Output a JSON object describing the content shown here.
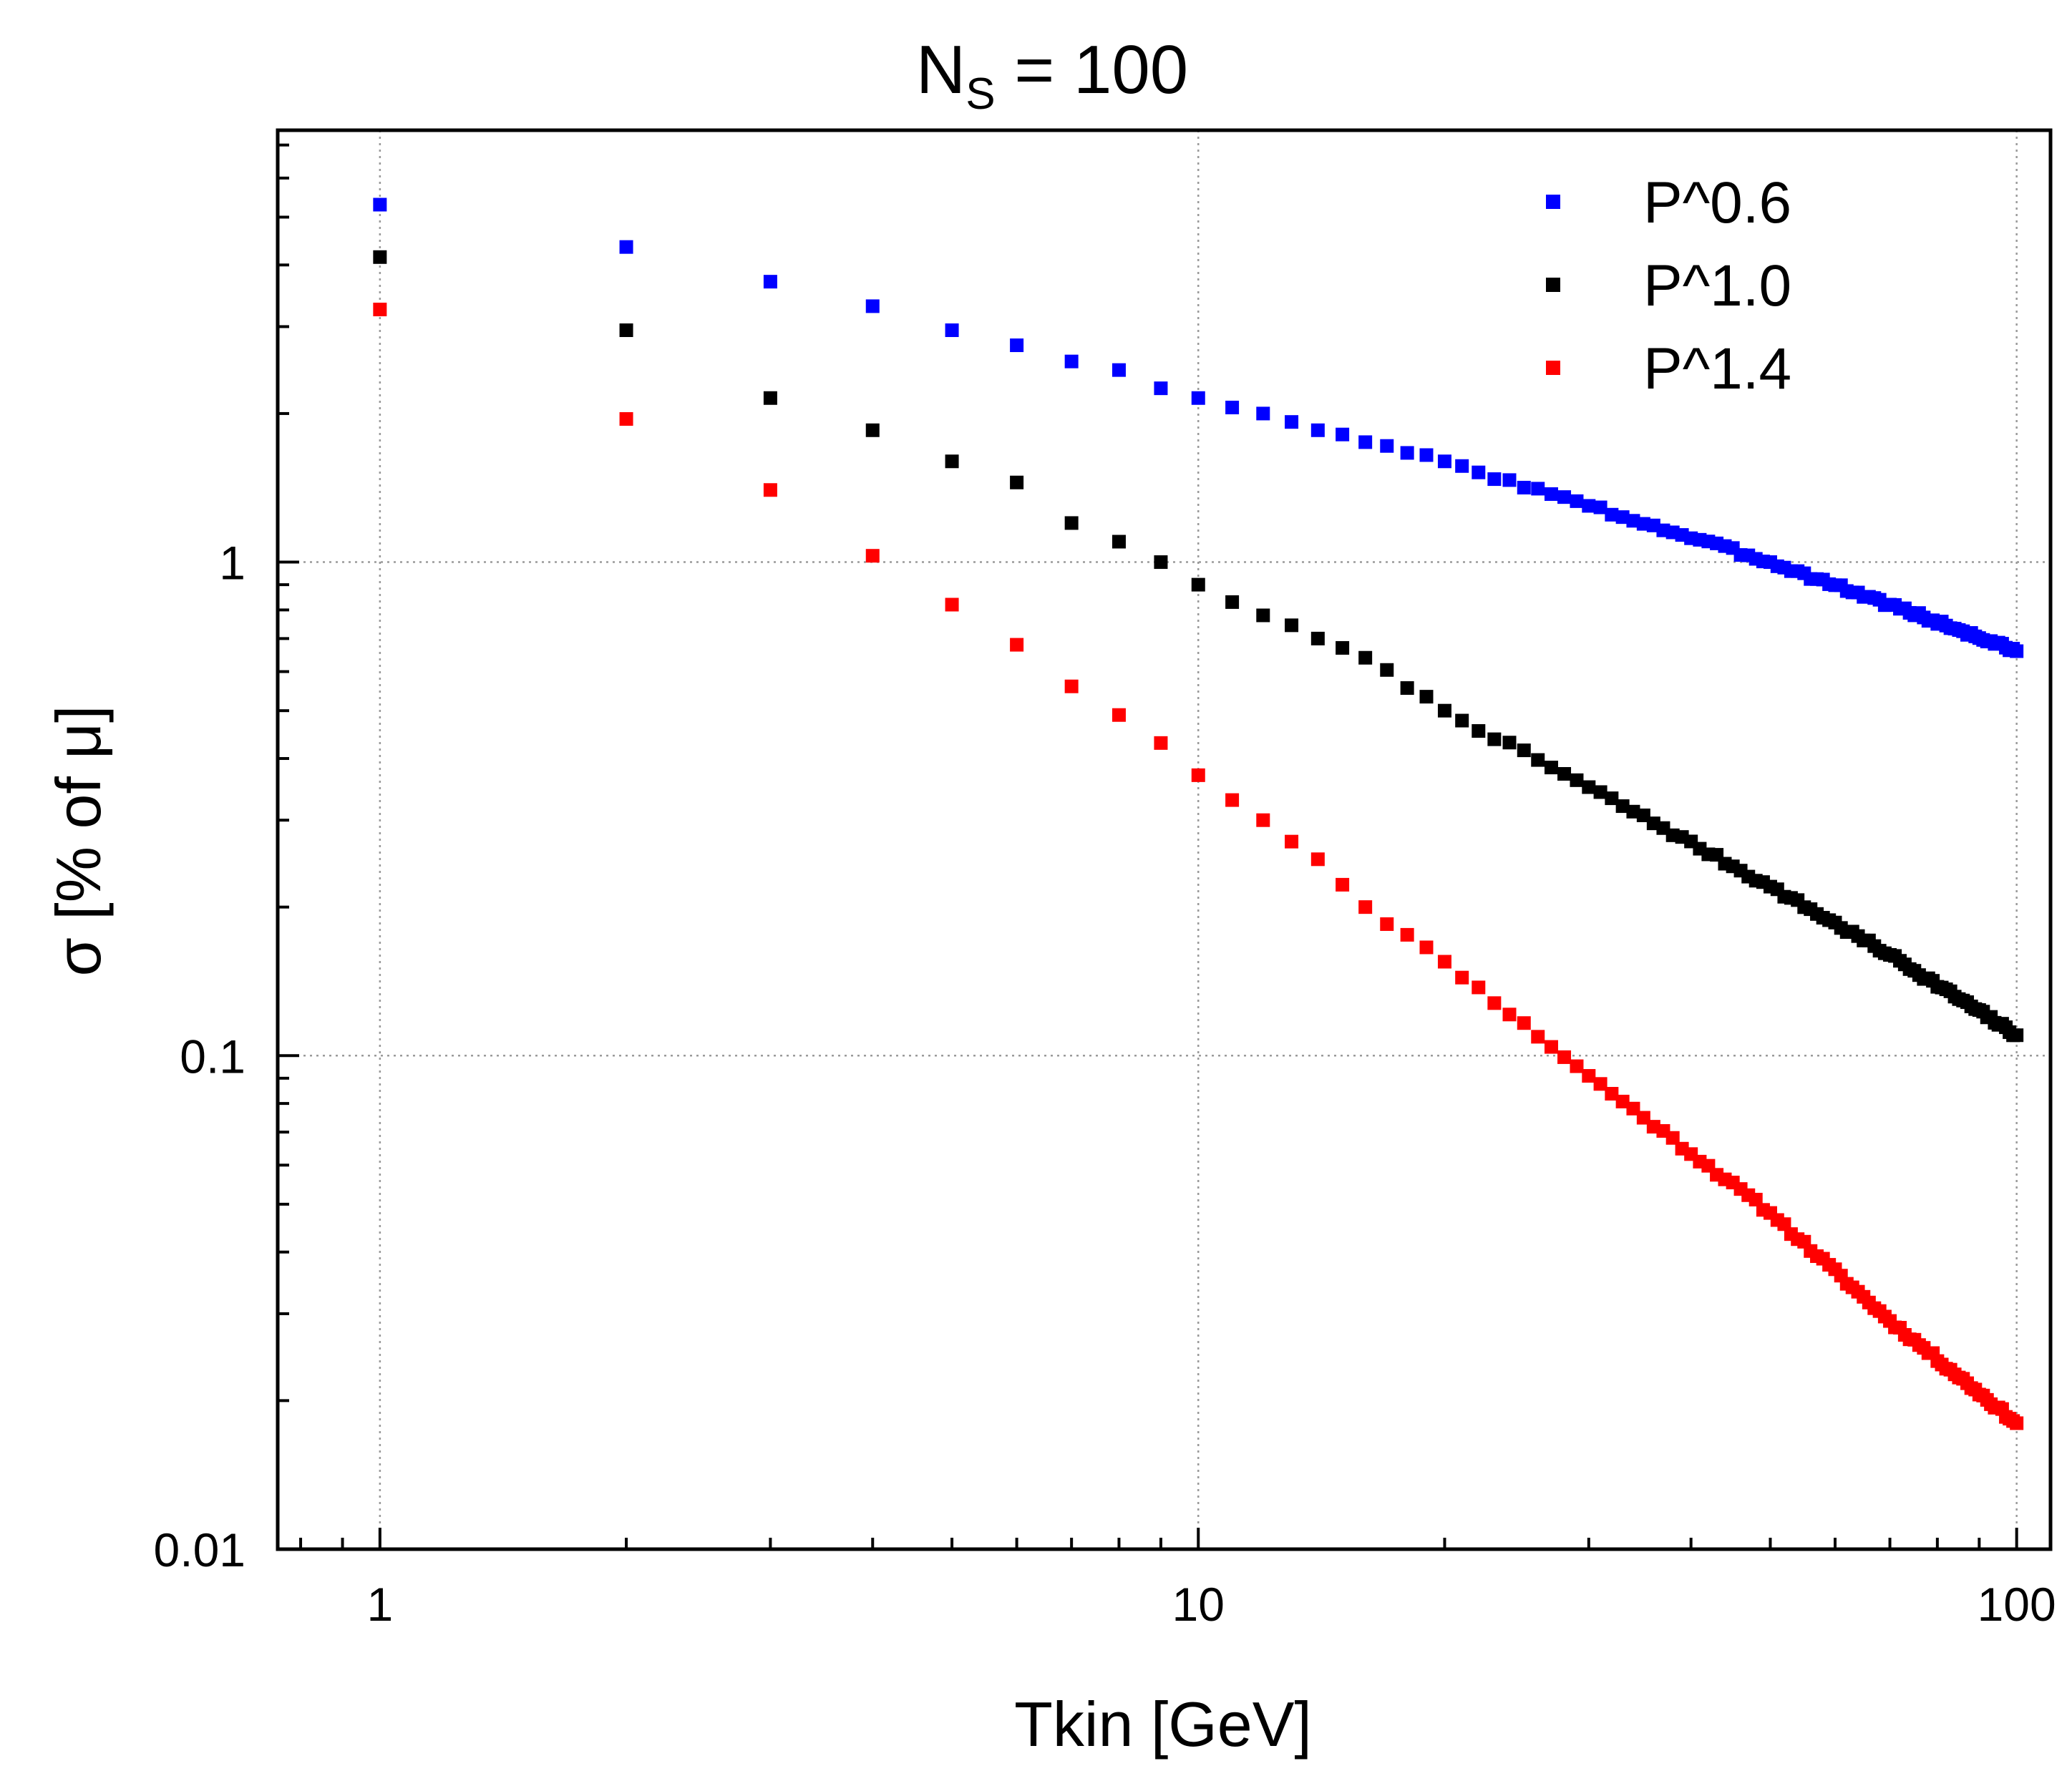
{
  "chart_data": {
    "type": "scatter",
    "title": {
      "main": "N",
      "subscript": "S",
      "rest": " = 100"
    },
    "xlabel": "Tkin [GeV]",
    "ylabel": "σ [% of μ]",
    "xscale": "log",
    "yscale": "log",
    "xlim": [
      0.75,
      110
    ],
    "ylim": [
      0.01,
      7.5
    ],
    "grid": true,
    "legend_position": "top-right",
    "xticks": [
      {
        "value": 1,
        "label": "1"
      },
      {
        "value": 10,
        "label": "10"
      },
      {
        "value": 100,
        "label": "100"
      }
    ],
    "yticks": [
      {
        "value": 0.01,
        "label": "0.01"
      },
      {
        "value": 0.1,
        "label": "0.1"
      },
      {
        "value": 1,
        "label": "1"
      }
    ],
    "series": [
      {
        "name": "P^0.6",
        "color": "#0000ff",
        "exponent": 0.6,
        "anchors": [
          [
            1,
            5.3
          ],
          [
            2,
            4.35
          ],
          [
            3,
            3.7
          ],
          [
            4,
            3.3
          ],
          [
            5,
            2.95
          ],
          [
            6,
            2.75
          ],
          [
            7,
            2.55
          ],
          [
            8,
            2.45
          ],
          [
            9,
            2.25
          ],
          [
            10,
            2.15
          ],
          [
            12,
            2.0
          ],
          [
            14,
            1.85
          ],
          [
            16,
            1.75
          ],
          [
            20,
            1.6
          ],
          [
            30,
            1.3
          ],
          [
            50,
            1.0
          ],
          [
            70,
            0.82
          ],
          [
            100,
            0.66
          ]
        ],
        "noise": 0.012,
        "seed": 3
      },
      {
        "name": "P^1.0",
        "color": "#000000",
        "exponent": 1.0,
        "anchors": [
          [
            1,
            4.15
          ],
          [
            2,
            2.95
          ],
          [
            3,
            2.15
          ],
          [
            4,
            1.85
          ],
          [
            5,
            1.6
          ],
          [
            6,
            1.45
          ],
          [
            7,
            1.2
          ],
          [
            8,
            1.1
          ],
          [
            9,
            1.0
          ],
          [
            10,
            0.9
          ],
          [
            12,
            0.78
          ],
          [
            14,
            0.7
          ],
          [
            16,
            0.64
          ],
          [
            20,
            0.5
          ],
          [
            30,
            0.35
          ],
          [
            50,
            0.22
          ],
          [
            70,
            0.16
          ],
          [
            100,
            0.11
          ]
        ],
        "noise": 0.012,
        "seed": 7
      },
      {
        "name": "P^1.4",
        "color": "#ff0000",
        "exponent": 1.4,
        "anchors": [
          [
            1,
            3.25
          ],
          [
            2,
            1.95
          ],
          [
            3,
            1.4
          ],
          [
            4,
            1.03
          ],
          [
            5,
            0.82
          ],
          [
            6,
            0.68
          ],
          [
            7,
            0.56
          ],
          [
            8,
            0.49
          ],
          [
            9,
            0.43
          ],
          [
            10,
            0.37
          ],
          [
            12,
            0.3
          ],
          [
            14,
            0.25
          ],
          [
            16,
            0.2
          ],
          [
            20,
            0.155
          ],
          [
            30,
            0.091
          ],
          [
            50,
            0.048
          ],
          [
            70,
            0.029
          ],
          [
            100,
            0.018
          ]
        ],
        "noise": 0.012,
        "seed": 11
      }
    ]
  }
}
